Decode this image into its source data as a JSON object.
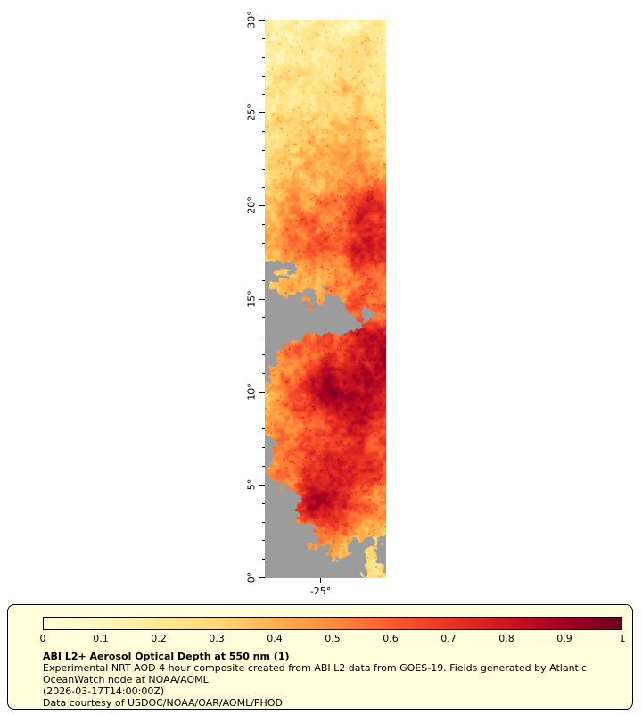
{
  "chart_data": {
    "type": "heatmap",
    "title": "ABI L2+ Aerosol Optical Depth at 550 nm (1)",
    "quantity": "Aerosol Optical Depth at 550 nm",
    "value_range": [
      0,
      1
    ],
    "y_axis": {
      "range": [
        0,
        30
      ],
      "minor_step": 1,
      "ticks": [
        {
          "value": 0,
          "label": "0°"
        },
        {
          "value": 5,
          "label": "5°"
        },
        {
          "value": 10,
          "label": "10°"
        },
        {
          "value": 15,
          "label": "15°"
        },
        {
          "value": 20,
          "label": "20°"
        },
        {
          "value": 25,
          "label": "25°"
        },
        {
          "value": 30,
          "label": "30°"
        }
      ]
    },
    "x_axis": {
      "ticks": [
        {
          "frac": 0.46,
          "label": "-25°"
        }
      ]
    },
    "colorbar": {
      "tick_labels": [
        "0",
        "0.1",
        "0.2",
        "0.3",
        "0.4",
        "0.5",
        "0.6",
        "0.7",
        "0.8",
        "0.9",
        "1"
      ],
      "tick_values": [
        0,
        0.1,
        0.2,
        0.3,
        0.4,
        0.5,
        0.6,
        0.7,
        0.8,
        0.9,
        1
      ],
      "stops": [
        {
          "v": 0.0,
          "c": "#FFFFD9"
        },
        {
          "v": 0.1,
          "c": "#FFF7BC"
        },
        {
          "v": 0.2,
          "c": "#FEE992"
        },
        {
          "v": 0.3,
          "c": "#FED976"
        },
        {
          "v": 0.4,
          "c": "#FEB24C"
        },
        {
          "v": 0.5,
          "c": "#FD8D3C"
        },
        {
          "v": 0.6,
          "c": "#FC5B2E"
        },
        {
          "v": 0.7,
          "c": "#E93423"
        },
        {
          "v": 0.8,
          "c": "#CC1622"
        },
        {
          "v": 0.9,
          "c": "#A30023"
        },
        {
          "v": 1.0,
          "c": "#6B0020"
        }
      ]
    },
    "no_data_color": "#9C9C9C",
    "aod_coarse_grid": {
      "description": "Approximate AOD field, rows top(30N) to bottom(0), 6 columns west to east; -1-like handling via missing_fraction grid (fraction of no-data/cloud gray).",
      "values": [
        [
          0.12,
          0.13,
          0.15,
          0.16,
          0.18,
          0.16
        ],
        [
          0.15,
          0.18,
          0.2,
          0.22,
          0.22,
          0.2
        ],
        [
          0.18,
          0.22,
          0.25,
          0.26,
          0.28,
          0.25
        ],
        [
          0.25,
          0.3,
          0.3,
          0.33,
          0.35,
          0.3
        ],
        [
          0.3,
          0.36,
          0.4,
          0.42,
          0.45,
          0.4
        ],
        [
          0.35,
          0.45,
          0.5,
          0.55,
          0.72,
          0.68
        ],
        [
          0.4,
          0.55,
          0.65,
          0.62,
          0.8,
          0.72
        ],
        [
          0.32,
          0.38,
          0.42,
          0.48,
          0.58,
          0.52
        ],
        [
          0.36,
          0.42,
          0.48,
          0.52,
          0.62,
          0.66
        ],
        [
          0.42,
          0.52,
          0.62,
          0.72,
          0.85,
          0.9
        ],
        [
          0.46,
          0.56,
          0.8,
          0.9,
          0.84,
          0.78
        ],
        [
          0.42,
          0.52,
          0.62,
          0.72,
          0.76,
          0.7
        ],
        [
          0.46,
          0.56,
          0.66,
          0.78,
          0.72,
          0.6
        ],
        [
          0.42,
          0.52,
          0.85,
          0.8,
          0.62,
          0.52
        ],
        [
          0.32,
          0.38,
          0.45,
          0.48,
          0.42,
          0.38
        ],
        [
          0.26,
          0.32,
          0.36,
          0.32,
          0.3,
          0.28
        ]
      ],
      "missing_fraction": [
        [
          0,
          0,
          0,
          0,
          0,
          0
        ],
        [
          0,
          0,
          0,
          0,
          0,
          0
        ],
        [
          0,
          0,
          0,
          0,
          0,
          0
        ],
        [
          0,
          0,
          0,
          0,
          0,
          0
        ],
        [
          0.05,
          0,
          0,
          0,
          0,
          0
        ],
        [
          0.1,
          0,
          0,
          0,
          0,
          0
        ],
        [
          0.15,
          0.05,
          0,
          0,
          0,
          0
        ],
        [
          0.65,
          0.55,
          0.4,
          0.3,
          0.15,
          0.1
        ],
        [
          0.85,
          0.8,
          0.7,
          0.55,
          0.4,
          0.25
        ],
        [
          0.6,
          0.4,
          0.2,
          0.1,
          0,
          0
        ],
        [
          0.45,
          0.25,
          0.05,
          0,
          0,
          0
        ],
        [
          0.55,
          0.3,
          0.1,
          0,
          0,
          0.05
        ],
        [
          0.5,
          0.3,
          0.1,
          0.05,
          0.1,
          0.1
        ],
        [
          0.7,
          0.5,
          0.2,
          0.1,
          0.2,
          0.3
        ],
        [
          0.88,
          0.82,
          0.6,
          0.42,
          0.5,
          0.6
        ],
        [
          0.92,
          0.88,
          0.8,
          0.62,
          0.52,
          0.55
        ]
      ]
    }
  },
  "legend": {
    "title": "ABI L2+ Aerosol Optical Depth at 550 nm (1)",
    "description": "Experimental NRT AOD 4 hour composite created from ABI L2 data from GOES-19. Fields generated by Atlantic OceanWatch node at NOAA/AOML",
    "timestamp": "(2026-03-17T14:00:00Z)",
    "credit": "Data courtesy of USDOC/NOAA/OAR/AOML/PHOD"
  }
}
